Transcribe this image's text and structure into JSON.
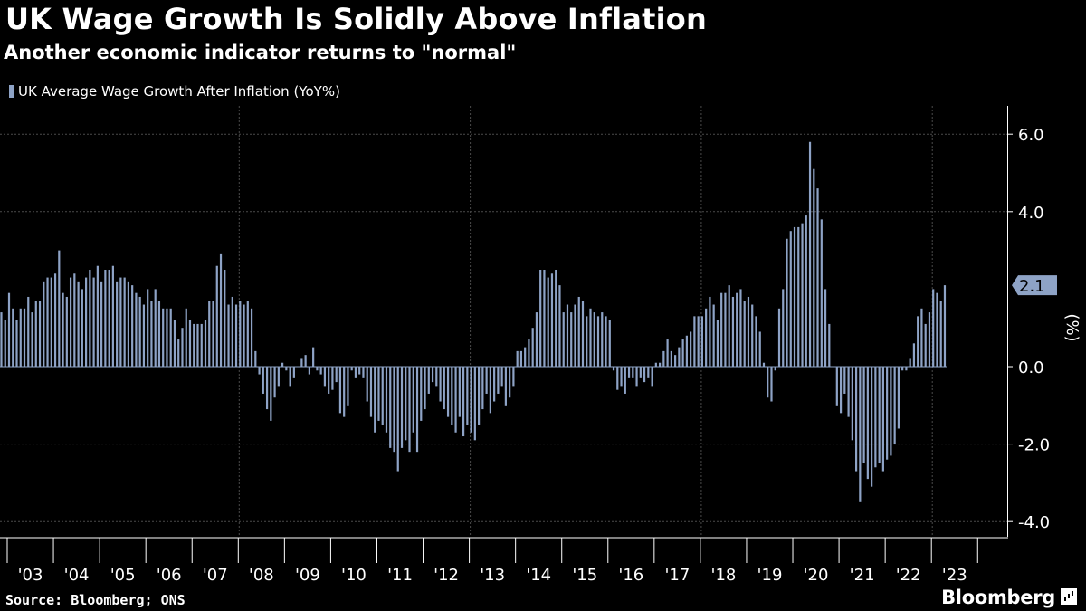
{
  "header": {
    "title": "UK Wage Growth Is Solidly Above Inflation",
    "subtitle": "Another economic indicator returns to \"normal\""
  },
  "footer": {
    "source": "Source: Bloomberg; ONS",
    "brand": "Bloomberg"
  },
  "colors": {
    "bar": "#8ea3c6",
    "grid": "#4a4a4a",
    "background": "#000000",
    "text": "#ffffff"
  },
  "chart_data": {
    "type": "bar",
    "title": "UK Wage Growth Is Solidly Above Inflation",
    "subtitle": "Another economic indicator returns to \"normal\"",
    "legend": [
      "UK Average Wage Growth After Inflation (YoY%)"
    ],
    "legend_position": "top-left",
    "ylabel": "(%)",
    "ylim": [
      -4.4,
      6.7
    ],
    "yticks": [
      6.0,
      4.0,
      0.0,
      -2.0,
      -4.0
    ],
    "ytick_labels": [
      "6.0",
      "4.0",
      "0.0",
      "-2.0",
      "-4.0"
    ],
    "year_labels": [
      "'03",
      "'04",
      "'05",
      "'06",
      "'07",
      "'08",
      "'09",
      "'10",
      "'11",
      "'12",
      "'13",
      "'14",
      "'15",
      "'16",
      "'17",
      "'18",
      "'19",
      "'20",
      "'21",
      "'22",
      "'23"
    ],
    "start": "2002-10",
    "frequency": "monthly",
    "grid": true,
    "last_value_label": "2.1",
    "series": [
      {
        "name": "UK Average Wage Growth After Inflation (YoY%)",
        "values": [
          1.6,
          1.4,
          1.2,
          1.9,
          1.5,
          1.2,
          1.5,
          1.5,
          1.8,
          1.4,
          1.7,
          1.7,
          2.2,
          2.3,
          2.3,
          2.4,
          3.0,
          1.9,
          1.8,
          2.3,
          2.4,
          2.2,
          2.0,
          2.3,
          2.5,
          2.3,
          2.6,
          2.2,
          2.5,
          2.5,
          2.6,
          2.2,
          2.3,
          2.3,
          2.2,
          2.1,
          1.9,
          1.8,
          1.6,
          2.0,
          1.7,
          2.0,
          1.7,
          1.5,
          1.5,
          1.5,
          1.2,
          0.7,
          1.0,
          1.5,
          1.2,
          1.1,
          1.1,
          1.1,
          1.2,
          1.7,
          1.7,
          2.6,
          2.9,
          2.5,
          1.6,
          1.8,
          1.6,
          1.7,
          1.6,
          1.7,
          1.5,
          0.4,
          -0.2,
          -0.7,
          -1.1,
          -1.4,
          -0.8,
          -0.5,
          0.1,
          -0.1,
          -0.5,
          -0.3,
          0.0,
          0.2,
          0.3,
          -0.2,
          0.5,
          -0.1,
          -0.2,
          -0.5,
          -0.7,
          -0.6,
          -0.4,
          -1.2,
          -1.3,
          -1.0,
          -0.1,
          -0.3,
          -0.2,
          -0.3,
          -0.9,
          -1.3,
          -1.7,
          -1.4,
          -1.5,
          -1.7,
          -2.1,
          -2.2,
          -2.7,
          -2.1,
          -1.9,
          -2.2,
          -1.7,
          -2.2,
          -1.4,
          -1.1,
          -0.7,
          -0.4,
          -0.5,
          -0.9,
          -1.1,
          -1.3,
          -1.5,
          -1.7,
          -1.3,
          -1.8,
          -1.5,
          -1.7,
          -1.9,
          -1.5,
          -1.1,
          -0.7,
          -1.2,
          -0.9,
          -0.7,
          -0.5,
          -1.0,
          -0.8,
          -0.5,
          0.4,
          0.4,
          0.5,
          0.7,
          1.0,
          1.4,
          2.5,
          2.5,
          2.3,
          2.4,
          2.5,
          2.1,
          1.4,
          1.6,
          1.4,
          1.6,
          1.8,
          1.7,
          1.3,
          1.5,
          1.4,
          1.3,
          1.4,
          1.3,
          1.2,
          -0.1,
          -0.6,
          -0.5,
          -0.7,
          -0.3,
          -0.3,
          -0.5,
          -0.3,
          -0.4,
          -0.3,
          -0.5,
          0.1,
          0.1,
          0.4,
          0.7,
          0.4,
          0.3,
          0.5,
          0.7,
          0.8,
          0.9,
          1.3,
          1.3,
          1.3,
          1.5,
          1.8,
          1.6,
          1.2,
          1.9,
          1.9,
          2.1,
          1.8,
          1.9,
          2.0,
          1.7,
          1.8,
          1.6,
          1.3,
          0.9,
          0.1,
          -0.8,
          -0.9,
          -0.1,
          1.5,
          2.0,
          3.3,
          3.5,
          3.6,
          3.6,
          3.7,
          3.9,
          5.8,
          5.1,
          4.6,
          3.8,
          2.0,
          1.1,
          0.0,
          -1.0,
          -1.2,
          -0.7,
          -1.3,
          -1.9,
          -2.7,
          -3.5,
          -2.5,
          -2.9,
          -3.1,
          -2.6,
          -2.5,
          -2.7,
          -2.4,
          -2.3,
          -2.0,
          -1.6,
          -0.1,
          -0.1,
          0.2,
          0.6,
          1.3,
          1.5,
          1.1,
          1.4,
          2.0,
          1.9,
          1.7,
          2.1
        ]
      }
    ]
  }
}
